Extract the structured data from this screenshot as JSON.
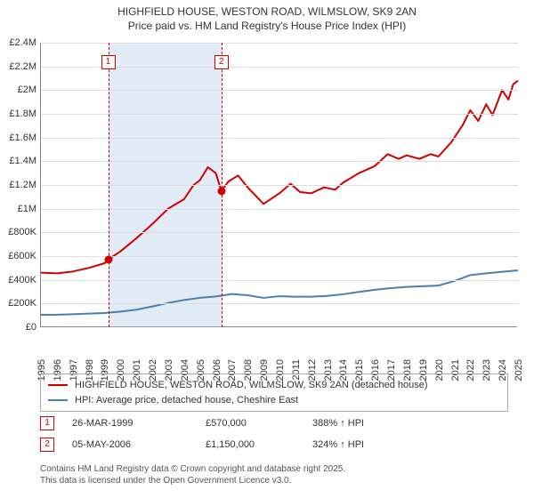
{
  "title": {
    "line1": "HIGHFIELD HOUSE, WESTON ROAD, WILMSLOW, SK9 2AN",
    "line2": "Price paid vs. HM Land Registry's House Price Index (HPI)"
  },
  "chart": {
    "type": "line",
    "background_color": "#ffffff",
    "grid_color": "#dddddd",
    "axis_color": "#888888",
    "x": {
      "min": 1995,
      "max": 2025,
      "tick_step": 1
    },
    "y": {
      "min": 0,
      "max": 2400000,
      "tick_step": 200000
    },
    "y_tick_labels": [
      "£0",
      "£200K",
      "£400K",
      "£600K",
      "£800K",
      "£1M",
      "£1.2M",
      "£1.4M",
      "£1.6M",
      "£1.8M",
      "£2M",
      "£2.2M",
      "£2.4M"
    ],
    "shade_band": {
      "from": 1999.23,
      "to": 2006.34,
      "fill": "rgba(170,200,230,0.35)"
    },
    "callout_lines": [
      {
        "n": "1",
        "x": 1999.23,
        "color": "#d00000"
      },
      {
        "n": "2",
        "x": 2006.34,
        "color": "#d00000"
      }
    ],
    "callout_y_offset": 14,
    "series": [
      {
        "name": "price_paid",
        "label": "HIGHFIELD HOUSE, WESTON ROAD, WILMSLOW, SK9 2AN (detached house)",
        "color": "#d00000",
        "width": 2,
        "points": [
          [
            1995.0,
            460000
          ],
          [
            1996.0,
            455000
          ],
          [
            1997.0,
            470000
          ],
          [
            1998.0,
            500000
          ],
          [
            1999.0,
            540000
          ],
          [
            1999.23,
            570000
          ],
          [
            2000.0,
            640000
          ],
          [
            2001.0,
            750000
          ],
          [
            2002.0,
            870000
          ],
          [
            2003.0,
            1000000
          ],
          [
            2004.0,
            1080000
          ],
          [
            2004.6,
            1200000
          ],
          [
            2005.0,
            1240000
          ],
          [
            2005.5,
            1350000
          ],
          [
            2006.0,
            1300000
          ],
          [
            2006.34,
            1150000
          ],
          [
            2006.8,
            1230000
          ],
          [
            2007.4,
            1280000
          ],
          [
            2008.0,
            1180000
          ],
          [
            2009.0,
            1040000
          ],
          [
            2010.0,
            1130000
          ],
          [
            2010.7,
            1210000
          ],
          [
            2011.3,
            1140000
          ],
          [
            2012.0,
            1130000
          ],
          [
            2012.8,
            1180000
          ],
          [
            2013.5,
            1160000
          ],
          [
            2014.0,
            1220000
          ],
          [
            2015.0,
            1300000
          ],
          [
            2016.0,
            1360000
          ],
          [
            2016.8,
            1460000
          ],
          [
            2017.5,
            1420000
          ],
          [
            2018.0,
            1450000
          ],
          [
            2018.8,
            1420000
          ],
          [
            2019.5,
            1460000
          ],
          [
            2020.0,
            1440000
          ],
          [
            2020.8,
            1560000
          ],
          [
            2021.5,
            1700000
          ],
          [
            2022.0,
            1830000
          ],
          [
            2022.5,
            1740000
          ],
          [
            2023.0,
            1880000
          ],
          [
            2023.4,
            1790000
          ],
          [
            2024.0,
            2000000
          ],
          [
            2024.4,
            1920000
          ],
          [
            2024.7,
            2050000
          ],
          [
            2025.0,
            2080000
          ]
        ]
      },
      {
        "name": "hpi",
        "label": "HPI: Average price, detached house, Cheshire East",
        "color": "#4a7fb0",
        "width": 2,
        "points": [
          [
            1995.0,
            105000
          ],
          [
            1996.0,
            106000
          ],
          [
            1997.0,
            110000
          ],
          [
            1998.0,
            115000
          ],
          [
            1999.0,
            120000
          ],
          [
            2000.0,
            132000
          ],
          [
            2001.0,
            148000
          ],
          [
            2002.0,
            175000
          ],
          [
            2003.0,
            205000
          ],
          [
            2004.0,
            230000
          ],
          [
            2005.0,
            248000
          ],
          [
            2006.0,
            260000
          ],
          [
            2007.0,
            280000
          ],
          [
            2008.0,
            270000
          ],
          [
            2009.0,
            248000
          ],
          [
            2010.0,
            262000
          ],
          [
            2011.0,
            258000
          ],
          [
            2012.0,
            258000
          ],
          [
            2013.0,
            264000
          ],
          [
            2014.0,
            278000
          ],
          [
            2015.0,
            298000
          ],
          [
            2016.0,
            316000
          ],
          [
            2017.0,
            330000
          ],
          [
            2018.0,
            340000
          ],
          [
            2019.0,
            346000
          ],
          [
            2020.0,
            352000
          ],
          [
            2021.0,
            390000
          ],
          [
            2022.0,
            440000
          ],
          [
            2023.0,
            455000
          ],
          [
            2024.0,
            468000
          ],
          [
            2025.0,
            480000
          ]
        ]
      }
    ],
    "sale_markers": [
      {
        "x": 1999.23,
        "y": 570000,
        "color": "#d00000"
      },
      {
        "x": 2006.34,
        "y": 1150000,
        "color": "#d00000"
      }
    ]
  },
  "legend": {
    "rows": [
      {
        "color": "#d00000",
        "label_ref": "chart.series.0.label"
      },
      {
        "color": "#4a7fb0",
        "label_ref": "chart.series.1.label"
      }
    ]
  },
  "sales": [
    {
      "n": "1",
      "date": "26-MAR-1999",
      "price": "£570,000",
      "pct": "388% ↑ HPI"
    },
    {
      "n": "2",
      "date": "05-MAY-2006",
      "price": "£1,150,000",
      "pct": "324% ↑ HPI"
    }
  ],
  "footer": {
    "l1": "Contains HM Land Registry data © Crown copyright and database right 2025.",
    "l2": "This data is licensed under the Open Government Licence v3.0."
  }
}
